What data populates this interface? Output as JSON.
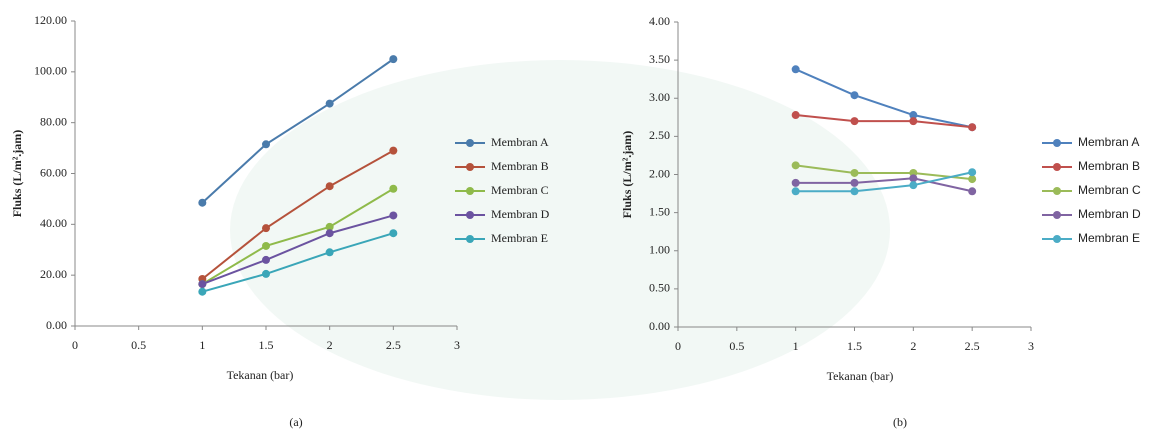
{
  "chart_data": [
    {
      "type": "line",
      "caption": "(a)",
      "xlabel": "Tekanan (bar)",
      "ylabel": "Fluks (L/m².jam)",
      "x": [
        1,
        1.5,
        2,
        2.5
      ],
      "xlim": [
        0,
        3
      ],
      "xticks": [
        0,
        0.5,
        1,
        1.5,
        2,
        2.5,
        3
      ],
      "ylim": [
        0,
        120
      ],
      "yticks": [
        {
          "value": 0,
          "label": "0.00"
        },
        {
          "value": 20,
          "label": "20.00"
        },
        {
          "value": 40,
          "label": "40.00"
        },
        {
          "value": 60,
          "label": "60.00"
        },
        {
          "value": 80,
          "label": "80.00"
        },
        {
          "value": 100,
          "label": "100.00"
        },
        {
          "value": 120,
          "label": "120.00"
        }
      ],
      "series": [
        {
          "name": "Membran A",
          "color": "#4a7bab",
          "values": [
            48.5,
            71.5,
            87.5,
            105
          ]
        },
        {
          "name": "Membran B",
          "color": "#b5523b",
          "values": [
            18.5,
            38.5,
            55,
            69
          ]
        },
        {
          "name": "Membran C",
          "color": "#8fba4a",
          "values": [
            16.5,
            31.5,
            39,
            54
          ]
        },
        {
          "name": "Membran D",
          "color": "#6b53a0",
          "values": [
            16.5,
            26,
            36.5,
            43.5
          ]
        },
        {
          "name": "Membran E",
          "color": "#3aa6b8",
          "values": [
            13.5,
            20.5,
            29,
            36.5
          ]
        }
      ]
    },
    {
      "type": "line",
      "caption": "(b)",
      "xlabel": "Tekanan (bar)",
      "ylabel": "Fluks (L/m².jam)",
      "x": [
        1,
        1.5,
        2,
        2.5
      ],
      "xlim": [
        0,
        3
      ],
      "xticks": [
        0,
        0.5,
        1,
        1.5,
        2,
        2.5,
        3
      ],
      "ylim": [
        0,
        4
      ],
      "yticks": [
        {
          "value": 0,
          "label": "0.00"
        },
        {
          "value": 0.5,
          "label": "0.50"
        },
        {
          "value": 1,
          "label": "1.00"
        },
        {
          "value": 1.5,
          "label": "1.50"
        },
        {
          "value": 2,
          "label": "2.00"
        },
        {
          "value": 2.5,
          "label": "2.50"
        },
        {
          "value": 3,
          "label": "3.00"
        },
        {
          "value": 3.5,
          "label": "3.50"
        },
        {
          "value": 4,
          "label": "4.00"
        }
      ],
      "series": [
        {
          "name": "Membran A",
          "color": "#4f81bd",
          "values": [
            3.38,
            3.04,
            2.78,
            2.62
          ]
        },
        {
          "name": "Membran B",
          "color": "#c0504d",
          "values": [
            2.78,
            2.7,
            2.7,
            2.62
          ]
        },
        {
          "name": "Membran C",
          "color": "#9bbb59",
          "values": [
            2.12,
            2.02,
            2.02,
            1.94
          ]
        },
        {
          "name": "Membran D",
          "color": "#8064a2",
          "values": [
            1.89,
            1.89,
            1.95,
            1.78
          ]
        },
        {
          "name": "Membran E",
          "color": "#4bacc6",
          "values": [
            1.78,
            1.78,
            1.86,
            2.03
          ]
        }
      ]
    }
  ]
}
